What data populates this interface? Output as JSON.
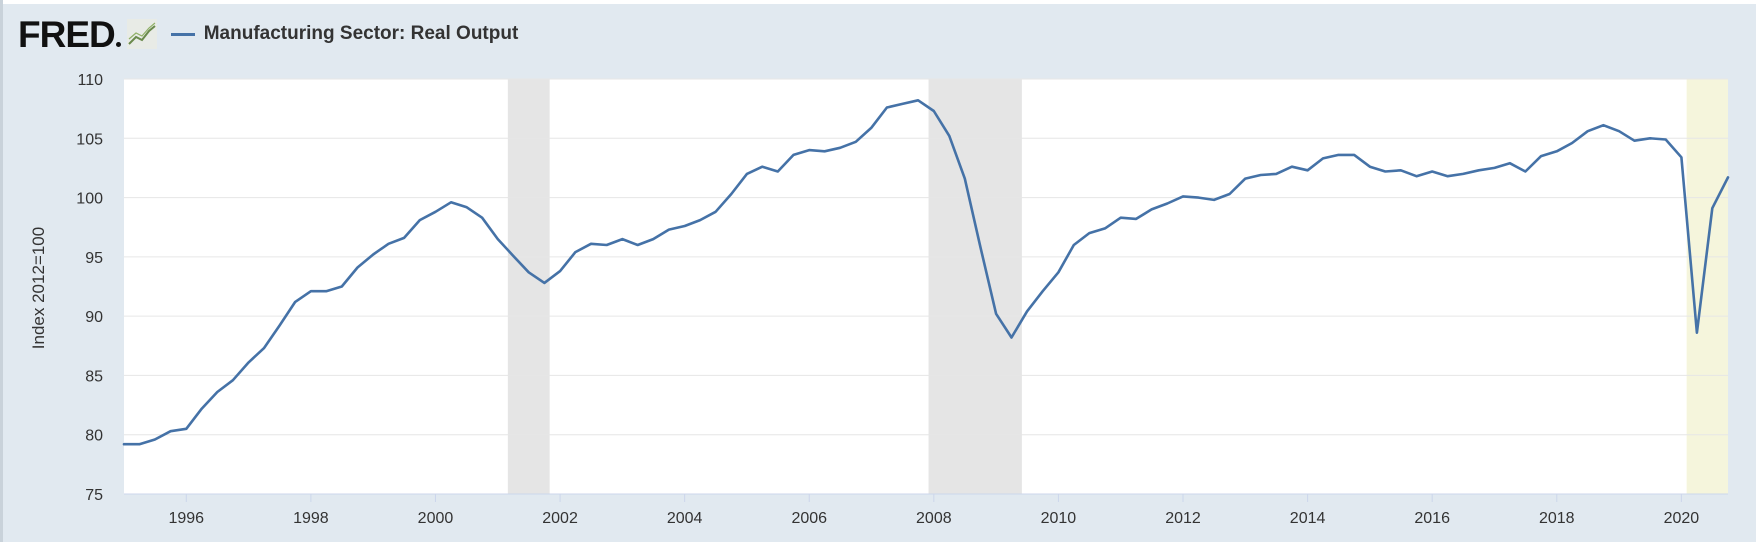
{
  "header": {
    "logo_text": "FRED",
    "logo_icon": "line-chart-icon",
    "legend_label": "Manufacturing Sector: Real Output"
  },
  "colors": {
    "series": "#4572a7",
    "recession": "#e5e5e5",
    "covid_recession": "#f5f5dc",
    "background": "#e1e9f0"
  },
  "chart_data": {
    "type": "line",
    "title": "",
    "xlabel": "",
    "ylabel": "Index 2012=100",
    "ylim": [
      75,
      110
    ],
    "xlim": [
      "1995-01-01",
      "2020-10-01"
    ],
    "yticks": [
      75,
      80,
      85,
      90,
      95,
      100,
      105,
      110
    ],
    "xticks": [
      "1996",
      "1998",
      "2000",
      "2002",
      "2004",
      "2006",
      "2008",
      "2010",
      "2012",
      "2014",
      "2016",
      "2018",
      "2020"
    ],
    "grid": true,
    "legend": "top-left",
    "recessions": [
      {
        "start": "2001-03-01",
        "end": "2001-11-01",
        "shade": "gray"
      },
      {
        "start": "2007-12-01",
        "end": "2009-06-01",
        "shade": "gray"
      },
      {
        "start": "2020-02-01",
        "end": "2020-10-01",
        "shade": "yellow"
      }
    ],
    "series": [
      {
        "name": "Manufacturing Sector: Real Output",
        "x": [
          "1995-01-01",
          "1995-04-01",
          "1995-07-01",
          "1995-10-01",
          "1996-01-01",
          "1996-04-01",
          "1996-07-01",
          "1996-10-01",
          "1997-01-01",
          "1997-04-01",
          "1997-07-01",
          "1997-10-01",
          "1998-01-01",
          "1998-04-01",
          "1998-07-01",
          "1998-10-01",
          "1999-01-01",
          "1999-04-01",
          "1999-07-01",
          "1999-10-01",
          "2000-01-01",
          "2000-04-01",
          "2000-07-01",
          "2000-10-01",
          "2001-01-01",
          "2001-04-01",
          "2001-07-01",
          "2001-10-01",
          "2002-01-01",
          "2002-04-01",
          "2002-07-01",
          "2002-10-01",
          "2003-01-01",
          "2003-04-01",
          "2003-07-01",
          "2003-10-01",
          "2004-01-01",
          "2004-04-01",
          "2004-07-01",
          "2004-10-01",
          "2005-01-01",
          "2005-04-01",
          "2005-07-01",
          "2005-10-01",
          "2006-01-01",
          "2006-04-01",
          "2006-07-01",
          "2006-10-01",
          "2007-01-01",
          "2007-04-01",
          "2007-07-01",
          "2007-10-01",
          "2008-01-01",
          "2008-04-01",
          "2008-07-01",
          "2008-10-01",
          "2009-01-01",
          "2009-04-01",
          "2009-07-01",
          "2009-10-01",
          "2010-01-01",
          "2010-04-01",
          "2010-07-01",
          "2010-10-01",
          "2011-01-01",
          "2011-04-01",
          "2011-07-01",
          "2011-10-01",
          "2012-01-01",
          "2012-04-01",
          "2012-07-01",
          "2012-10-01",
          "2013-01-01",
          "2013-04-01",
          "2013-07-01",
          "2013-10-01",
          "2014-01-01",
          "2014-04-01",
          "2014-07-01",
          "2014-10-01",
          "2015-01-01",
          "2015-04-01",
          "2015-07-01",
          "2015-10-01",
          "2016-01-01",
          "2016-04-01",
          "2016-07-01",
          "2016-10-01",
          "2017-01-01",
          "2017-04-01",
          "2017-07-01",
          "2017-10-01",
          "2018-01-01",
          "2018-04-01",
          "2018-07-01",
          "2018-10-01",
          "2019-01-01",
          "2019-04-01",
          "2019-07-01",
          "2019-10-01",
          "2020-01-01",
          "2020-04-01",
          "2020-07-01",
          "2020-10-01"
        ],
        "values": [
          79.2,
          79.2,
          79.6,
          80.3,
          80.5,
          82.2,
          83.6,
          84.6,
          86.1,
          87.3,
          89.2,
          91.2,
          92.1,
          92.1,
          92.5,
          94.1,
          95.2,
          96.1,
          96.6,
          98.1,
          98.8,
          99.6,
          99.2,
          98.3,
          96.5,
          95.1,
          93.7,
          92.8,
          93.8,
          95.4,
          96.1,
          96.0,
          96.5,
          96.0,
          96.5,
          97.3,
          97.6,
          98.1,
          98.8,
          100.3,
          102.0,
          102.6,
          102.2,
          103.6,
          104.0,
          103.9,
          104.2,
          104.7,
          105.9,
          107.6,
          107.9,
          108.2,
          107.3,
          105.2,
          101.6,
          95.8,
          90.2,
          88.2,
          90.4,
          92.1,
          93.7,
          96.0,
          97.0,
          97.4,
          98.3,
          98.2,
          99.0,
          99.5,
          100.1,
          100.0,
          99.8,
          100.3,
          101.6,
          101.9,
          102.0,
          102.6,
          102.3,
          103.3,
          103.6,
          103.6,
          102.6,
          102.2,
          102.3,
          101.8,
          102.2,
          101.8,
          102.0,
          102.3,
          102.5,
          102.9,
          102.2,
          103.5,
          103.9,
          104.6,
          105.6,
          106.1,
          105.6,
          104.8,
          105.0,
          104.9,
          103.4,
          88.6,
          99.1,
          101.7
        ]
      }
    ]
  }
}
